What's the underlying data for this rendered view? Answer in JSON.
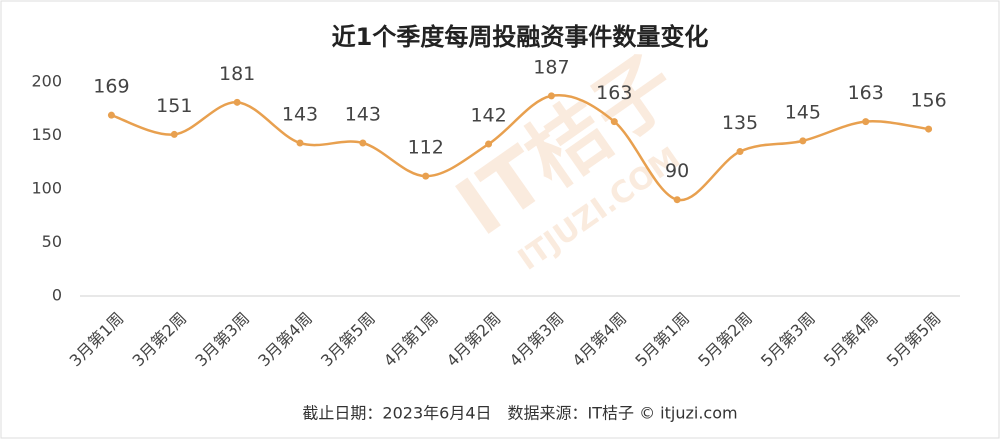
{
  "chart_data": {
    "type": "line",
    "title": "近1个季度每周投融资事件数量变化",
    "categories": [
      "3月第1周",
      "3月第2周",
      "3月第3周",
      "3月第4周",
      "3月第5周",
      "4月第1周",
      "4月第2周",
      "4月第3周",
      "4月第4周",
      "5月第1周",
      "5月第2周",
      "5月第3周",
      "5月第4周",
      "5月第5周"
    ],
    "values": [
      169,
      151,
      181,
      143,
      143,
      112,
      142,
      187,
      163,
      90,
      135,
      145,
      163,
      156
    ],
    "color": "#e8a04f",
    "ylim": [
      0,
      200
    ],
    "yticks": [
      0,
      50,
      100,
      150,
      200
    ],
    "grid": false,
    "smooth": true,
    "watermark": [
      "IT桔子",
      "ITJUZI.COM"
    ],
    "footnote": "截止日期：2023年6月4日　数据来源：IT桔子 © itjuzi.com"
  }
}
